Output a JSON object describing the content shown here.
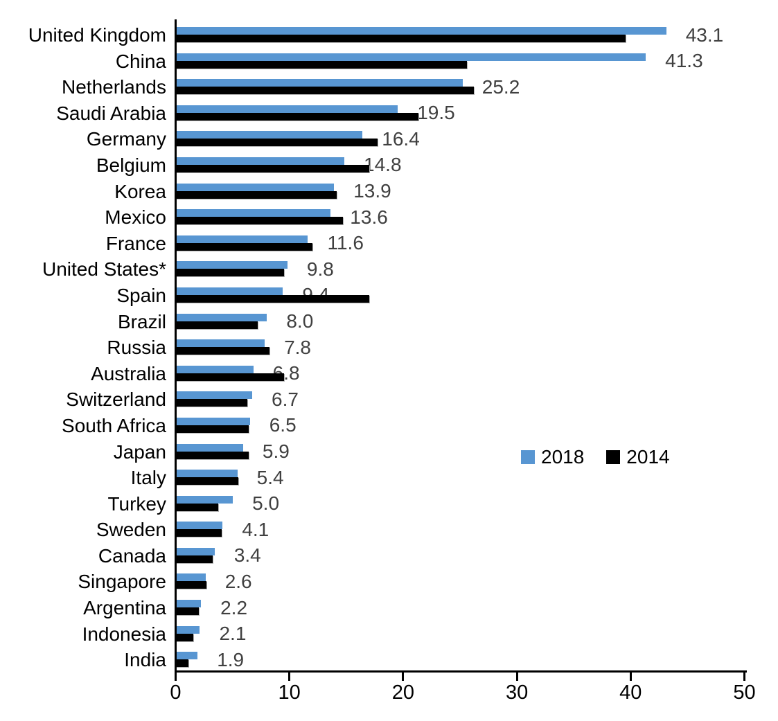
{
  "chart_data": {
    "type": "bar",
    "orientation": "horizontal",
    "title": "",
    "xlabel": "",
    "ylabel": "",
    "xlim": [
      0,
      50
    ],
    "x_ticks": [
      "0",
      "10",
      "20",
      "30",
      "40",
      "50"
    ],
    "grid": false,
    "legend_position": "middle-right",
    "categories": [
      "United Kingdom",
      "China",
      "Netherlands",
      "Saudi Arabia",
      "Germany",
      "Belgium",
      "Korea",
      "Mexico",
      "France",
      "United States*",
      "Spain",
      "Brazil",
      "Russia",
      "Australia",
      "Switzerland",
      "South Africa",
      "Japan",
      "Italy",
      "Turkey",
      "Sweden",
      "Canada",
      "Singapore",
      "Argentina",
      "Indonesia",
      "India"
    ],
    "series": [
      {
        "name": "2018",
        "color": "#5896D2",
        "values": [
          43.1,
          41.3,
          25.2,
          19.5,
          16.4,
          14.8,
          13.9,
          13.6,
          11.6,
          9.8,
          9.4,
          8.0,
          7.8,
          6.8,
          6.7,
          6.5,
          5.9,
          5.4,
          5.0,
          4.1,
          3.4,
          2.6,
          2.2,
          2.1,
          1.9
        ]
      },
      {
        "name": "2014",
        "color": "#000000",
        "values": [
          39.5,
          25.6,
          26.2,
          21.3,
          17.7,
          17.0,
          14.1,
          14.7,
          12.0,
          9.5,
          17.0,
          7.2,
          8.2,
          9.5,
          6.3,
          6.4,
          6.4,
          5.5,
          3.7,
          4.0,
          3.2,
          2.7,
          2.0,
          1.5,
          1.1
        ]
      }
    ],
    "value_labels_2018": [
      "43.1",
      "41.3",
      "25.2",
      "19.5",
      "16.4",
      "14.8",
      "13.9",
      "13.6",
      "11.6",
      "9.8",
      "9.4",
      "8.0",
      "7.8",
      "6.8",
      "6.7",
      "6.5",
      "5.9",
      "5.4",
      "5.0",
      "4.1",
      "3.4",
      "2.6",
      "2.2",
      "2.1",
      "1.9"
    ],
    "value_label_color": "#404040"
  },
  "legend": {
    "items": [
      {
        "label": "2018",
        "color": "#5896D2"
      },
      {
        "label": "2014",
        "color": "#000000"
      }
    ]
  }
}
